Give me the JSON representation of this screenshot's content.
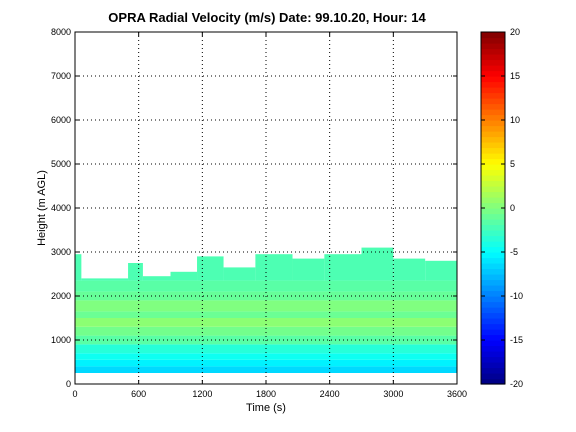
{
  "chart_data": {
    "type": "heatmap",
    "title": "OPRA Radial Velocity (m/s)  Date: 99.10.20, Hour: 14",
    "xlabel": "Time (s)",
    "ylabel": "Height (m AGL)",
    "xlim": [
      0,
      3600
    ],
    "ylim": [
      0,
      8000
    ],
    "x_ticks": [
      0,
      600,
      1200,
      1800,
      2400,
      3000,
      3600
    ],
    "x_tick_labels": [
      "0",
      "600",
      "1200",
      "1800",
      "2400",
      "3000",
      "3600"
    ],
    "y_ticks": [
      0,
      1000,
      2000,
      3000,
      4000,
      5000,
      6000,
      7000,
      8000
    ],
    "y_tick_labels": [
      "0",
      "1000",
      "2000",
      "3000",
      "4000",
      "5000",
      "6000",
      "7000",
      "8000"
    ],
    "grid": true,
    "colorbar": {
      "range": [
        -20,
        20
      ],
      "ticks": [
        20,
        15,
        10,
        5,
        0,
        -5,
        -10,
        -15,
        -20
      ],
      "tick_labels": [
        "20",
        "15",
        "10",
        "5",
        "0",
        "-5",
        "-10",
        "-15",
        "-20"
      ],
      "colormap": "jet"
    },
    "layers": [
      {
        "height_bottom": 250,
        "height_top": 400,
        "velocity": -6.5
      },
      {
        "height_bottom": 400,
        "height_top": 550,
        "velocity": -5.5
      },
      {
        "height_bottom": 550,
        "height_top": 700,
        "velocity": -4.5
      },
      {
        "height_bottom": 700,
        "height_top": 900,
        "velocity": -3.5
      },
      {
        "height_bottom": 900,
        "height_top": 1100,
        "velocity": -1.5
      },
      {
        "height_bottom": 1100,
        "height_top": 1300,
        "velocity": -0.5
      },
      {
        "height_bottom": 1300,
        "height_top": 1500,
        "velocity": 0.5
      },
      {
        "height_bottom": 1500,
        "height_top": 1650,
        "velocity": -0.8
      },
      {
        "height_bottom": 1650,
        "height_top": 1900,
        "velocity": 0.0
      },
      {
        "height_bottom": 1900,
        "height_top": 2100,
        "velocity": -1.0
      },
      {
        "height_bottom": 2100,
        "height_top": 2350,
        "velocity": -1.5
      }
    ],
    "top_echo": {
      "velocity": -2.0,
      "segments": [
        {
          "t_start": 0,
          "t_end": 60,
          "height_top": 2950
        },
        {
          "t_start": 60,
          "t_end": 500,
          "height_top": 2400
        },
        {
          "t_start": 500,
          "t_end": 640,
          "height_top": 2750
        },
        {
          "t_start": 640,
          "t_end": 900,
          "height_top": 2450
        },
        {
          "t_start": 900,
          "t_end": 1150,
          "height_top": 2550
        },
        {
          "t_start": 1150,
          "t_end": 1400,
          "height_top": 2900
        },
        {
          "t_start": 1400,
          "t_end": 1700,
          "height_top": 2650
        },
        {
          "t_start": 1700,
          "t_end": 2050,
          "height_top": 2950
        },
        {
          "t_start": 2050,
          "t_end": 2350,
          "height_top": 2850
        },
        {
          "t_start": 2350,
          "t_end": 2700,
          "height_top": 2950
        },
        {
          "t_start": 2700,
          "t_end": 3000,
          "height_top": 3100
        },
        {
          "t_start": 3000,
          "t_end": 3300,
          "height_top": 2850
        },
        {
          "t_start": 3300,
          "t_end": 3600,
          "height_top": 2800
        }
      ]
    }
  }
}
